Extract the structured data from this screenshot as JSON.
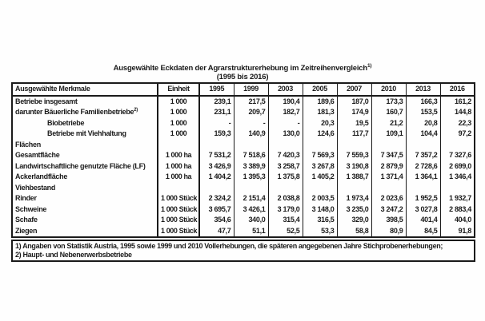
{
  "title": {
    "line1": "Ausgewählte Eckdaten der Agrarstrukturerhebung im Zeitreihenvergleich",
    "footnote_ref": "1)",
    "line2": "(1995 bis 2016)"
  },
  "table": {
    "col_headers": [
      "Ausgewählte Merkmale",
      "Einheit",
      "1995",
      "1999",
      "2003",
      "2005",
      "2007",
      "2010",
      "2013",
      "2016"
    ],
    "rows": [
      {
        "label": "Betriebe insgesamt",
        "indent": 0,
        "unit": "1 000",
        "values": [
          "239,1",
          "217,5",
          "190,4",
          "189,6",
          "187,0",
          "173,3",
          "166,3",
          "161,2"
        ]
      },
      {
        "label": "darunter Bäuerliche Familienbetriebe",
        "sup": "2)",
        "indent": 0,
        "unit": "1 000",
        "values": [
          "231,1",
          "209,7",
          "182,7",
          "181,3",
          "174,9",
          "160,7",
          "153,5",
          "144,8"
        ]
      },
      {
        "label": "Biobetriebe",
        "indent": 1,
        "unit": "1 000",
        "values": [
          "-",
          "-",
          "-",
          "20,3",
          "19,5",
          "21,2",
          "20,8",
          "22,3"
        ]
      },
      {
        "label": "Betriebe mit Viehhaltung",
        "indent": 1,
        "unit": "1 000",
        "values": [
          "159,3",
          "140,9",
          "130,0",
          "124,6",
          "117,7",
          "109,1",
          "104,4",
          "97,2"
        ]
      },
      {
        "label": "Flächen",
        "section": true,
        "unit": "",
        "values": [
          "",
          "",
          "",
          "",
          "",
          "",
          "",
          ""
        ]
      },
      {
        "label": "Gesamtfläche",
        "indent": 0,
        "unit": "1 000 ha",
        "values": [
          "7 531,2",
          "7 518,6",
          "7 420,3",
          "7 569,3",
          "7 559,3",
          "7 347,5",
          "7 357,2",
          "7 327,6"
        ]
      },
      {
        "label": "Landwirtschaftliche genutzte Fläche (LF)",
        "indent": 0,
        "unit": "1 000 ha",
        "values": [
          "3 426,9",
          "3 389,9",
          "3 258,7",
          "3 267,8",
          "3 190,8",
          "2 879,9",
          "2 728,6",
          "2 699,0"
        ]
      },
      {
        "label": "Ackerlandfläche",
        "indent": 0,
        "unit": "1 000 ha",
        "values": [
          "1 404,2",
          "1 395,3",
          "1 375,8",
          "1 405,2",
          "1 388,7",
          "1 371,4",
          "1 364,1",
          "1 346,4"
        ]
      },
      {
        "label": "Viehbestand",
        "section": true,
        "unit": "",
        "values": [
          "",
          "",
          "",
          "",
          "",
          "",
          "",
          ""
        ]
      },
      {
        "label": "Rinder",
        "indent": 0,
        "unit": "1 000 Stück",
        "values": [
          "2 324,2",
          "2 151,4",
          "2 038,8",
          "2 003,5",
          "1 973,4",
          "2 023,6",
          "1 952,5",
          "1 932,7"
        ]
      },
      {
        "label": "Schweine",
        "indent": 0,
        "unit": "1 000 Stück",
        "values": [
          "3 695,7",
          "3 426,1",
          "3 179,0",
          "3 148,0",
          "3 235,0",
          "3 247,2",
          "3 027,8",
          "2 883,4"
        ]
      },
      {
        "label": "Schafe",
        "indent": 0,
        "unit": "1 000 Stück",
        "values": [
          "354,6",
          "340,0",
          "315,4",
          "316,5",
          "329,0",
          "398,5",
          "401,4",
          "404,0"
        ]
      },
      {
        "label": "Ziegen",
        "indent": 0,
        "unit": "1 000 Stück",
        "values": [
          "47,7",
          "51,1",
          "52,5",
          "53,3",
          "58,8",
          "80,9",
          "84,5",
          "91,8"
        ]
      }
    ],
    "footnotes": [
      "1) Angaben von Statistik Austria, 1995 sowie 1999 und 2010 Vollerhebungen, die späteren angegebenen Jahre Stichprobenerhebungen;",
      "2) Haupt- und Nebenerwerbsbetriebe"
    ]
  }
}
